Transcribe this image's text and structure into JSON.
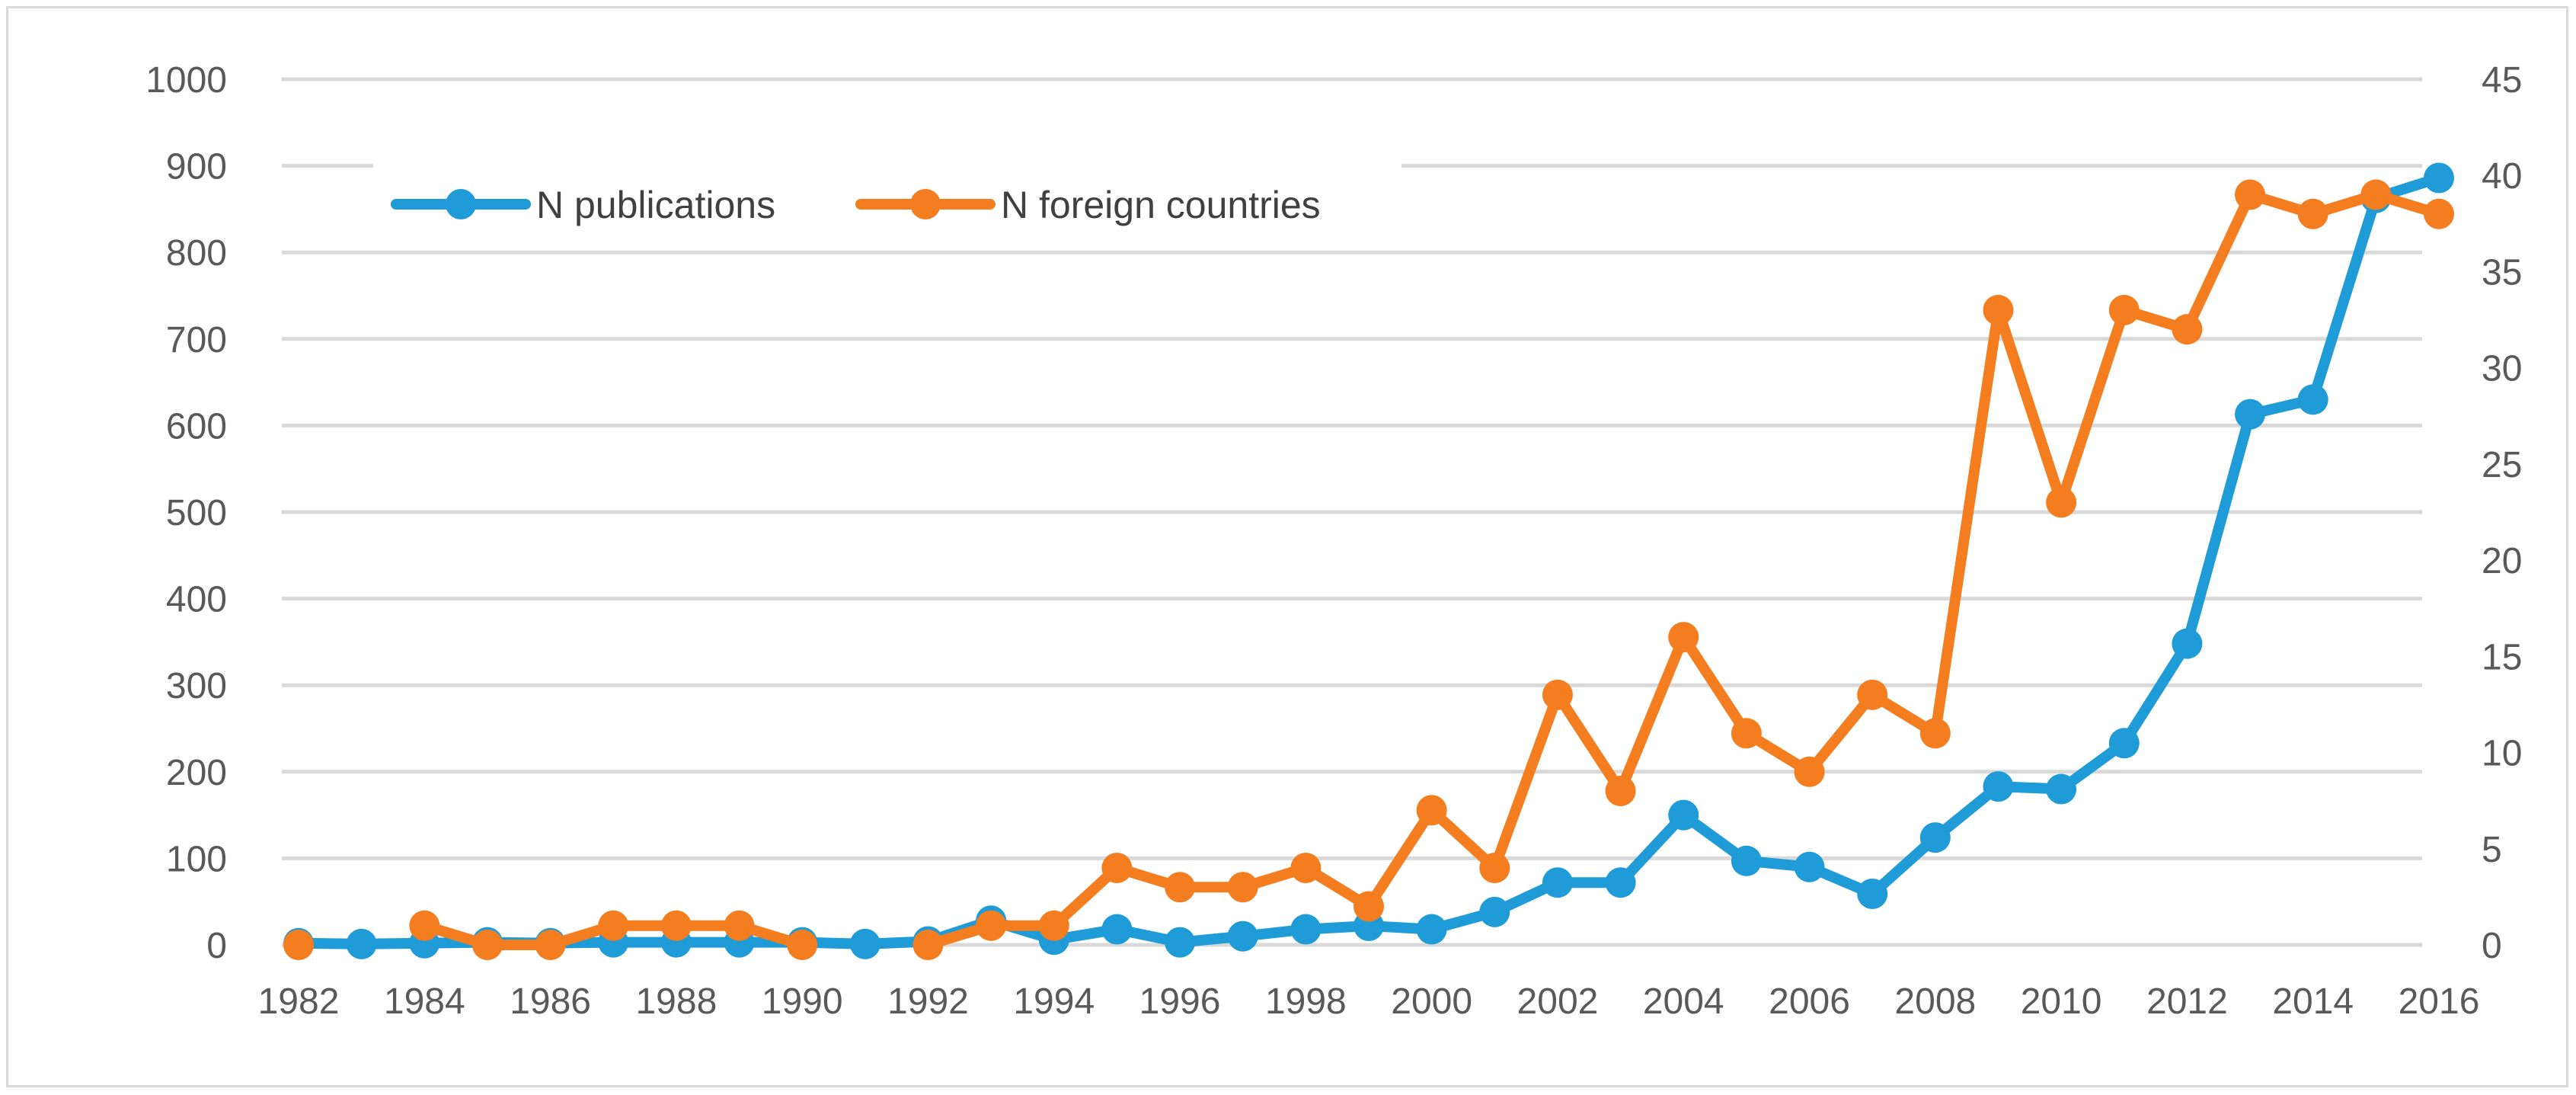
{
  "chart_data": {
    "type": "line",
    "title": "",
    "xlabel": "",
    "ylabel": "",
    "y2label": "",
    "x": [
      1982,
      1983,
      1984,
      1985,
      1986,
      1987,
      1988,
      1989,
      1990,
      1991,
      1992,
      1993,
      1994,
      1995,
      1996,
      1997,
      1998,
      1999,
      2000,
      2001,
      2002,
      2003,
      2004,
      2005,
      2006,
      2007,
      2008,
      2009,
      2010,
      2011,
      2012,
      2013,
      2014,
      2015,
      2016
    ],
    "x_tick_labels": [
      "1982",
      "1984",
      "1986",
      "1988",
      "1990",
      "1992",
      "1994",
      "1996",
      "1998",
      "2000",
      "2002",
      "2004",
      "2006",
      "2008",
      "2010",
      "2012",
      "2014",
      "2016"
    ],
    "ylim": [
      0,
      1000
    ],
    "y_tick_labels": [
      "0",
      "100",
      "200",
      "300",
      "400",
      "500",
      "600",
      "700",
      "800",
      "900",
      "1000"
    ],
    "y2lim": [
      0,
      45
    ],
    "y2_tick_labels": [
      "0",
      "5",
      "10",
      "15",
      "20",
      "25",
      "30",
      "35",
      "40",
      "45"
    ],
    "grid": true,
    "legend_position": "top-left",
    "series": [
      {
        "name": "N publications",
        "axis": "left",
        "color": "#1f9bd7",
        "values": [
          2,
          1,
          2,
          3,
          2,
          3,
          3,
          3,
          3,
          1,
          4,
          28,
          6,
          18,
          3,
          10,
          18,
          22,
          18,
          38,
          72,
          72,
          150,
          97,
          90,
          59,
          124,
          183,
          180,
          233,
          348,
          613,
          630,
          863,
          886
        ]
      },
      {
        "name": "N foreign countries",
        "axis": "right",
        "color": "#f47d20",
        "values": [
          0,
          null,
          1,
          0,
          0,
          1,
          1,
          1,
          0,
          null,
          0,
          1,
          1,
          4,
          3,
          3,
          4,
          2,
          7,
          4,
          13,
          8,
          16,
          11,
          9,
          13,
          11,
          33,
          23,
          33,
          32,
          39,
          38,
          39,
          38
        ]
      }
    ]
  }
}
